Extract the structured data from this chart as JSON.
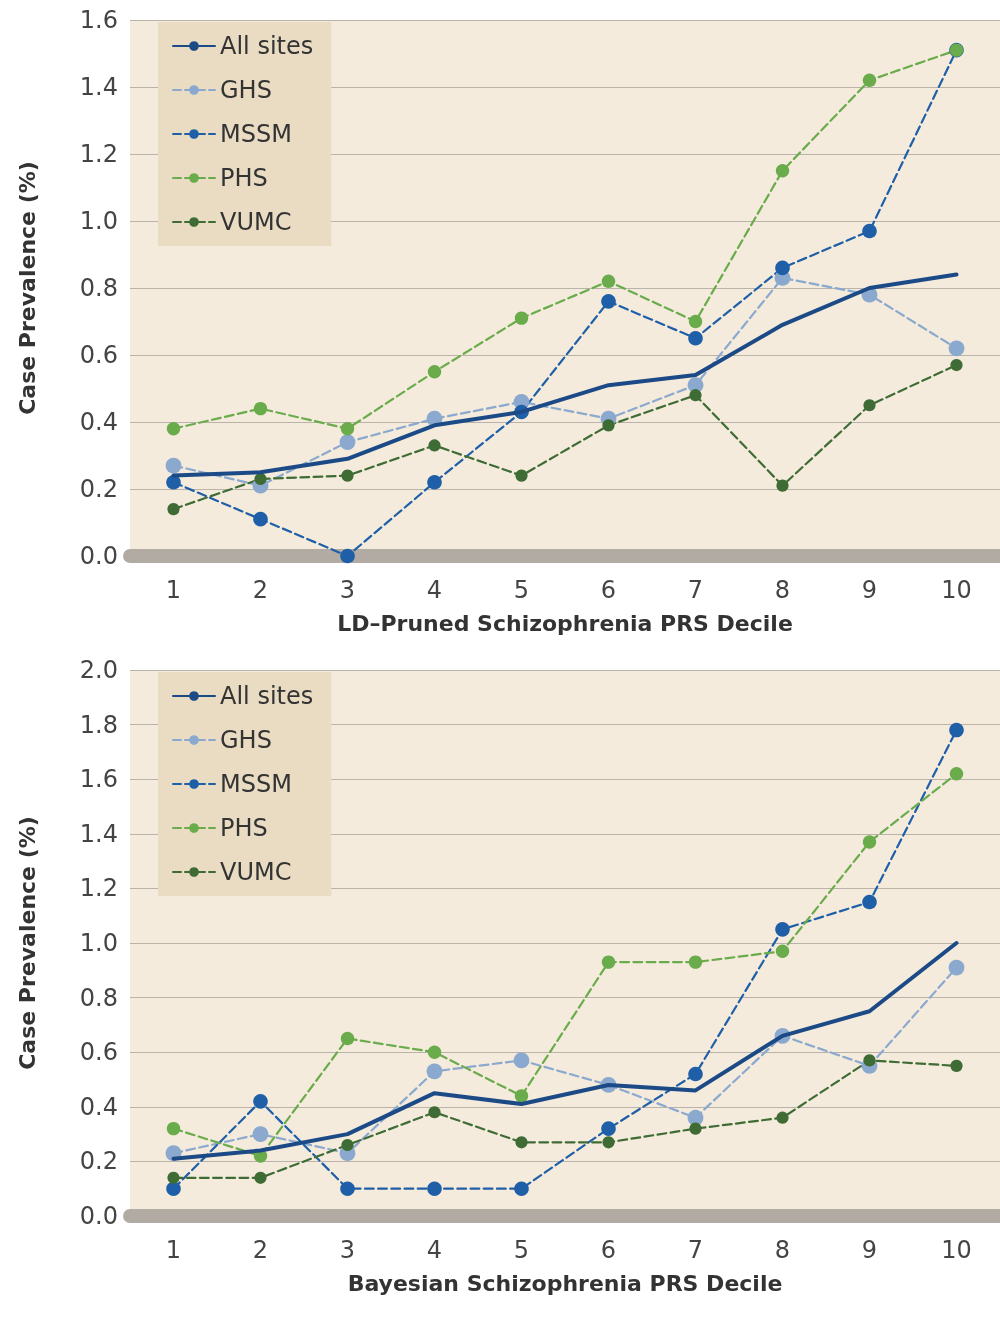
{
  "chart_data": [
    {
      "type": "line",
      "xlabel": "LD–Pruned Schizophrenia PRS Decile",
      "ylabel": "Case Prevalence (%)",
      "categories": [
        "1",
        "2",
        "3",
        "4",
        "5",
        "6",
        "7",
        "8",
        "9",
        "10"
      ],
      "ylim": [
        0,
        1.6
      ],
      "yticks": [
        {
          "value": 0,
          "label": "0.0"
        },
        0.2,
        0.4,
        0.6,
        0.8,
        {
          "value": 1,
          "label": "1.0"
        },
        1.2,
        1.4,
        1.6
      ],
      "grid": "y",
      "legend": "top left",
      "series": [
        {
          "name": "All sites",
          "color": "#1b4a86",
          "line_style": "solid",
          "marker": "none",
          "values": [
            0.24,
            0.25,
            0.29,
            0.39,
            0.43,
            0.51,
            0.54,
            0.69,
            0.8,
            0.84
          ]
        },
        {
          "name": "GHS",
          "color": "#8ba9cf",
          "line_style": "dashed",
          "marker": "circle",
          "values": [
            0.27,
            0.21,
            0.34,
            0.41,
            0.46,
            0.41,
            0.51,
            0.83,
            0.78,
            0.62
          ]
        },
        {
          "name": "MSSM",
          "color": "#1f5fa8",
          "line_style": "dashed",
          "marker": "circle",
          "values": [
            0.22,
            0.11,
            0.0,
            0.22,
            0.43,
            0.76,
            0.65,
            0.86,
            0.97,
            1.51
          ]
        },
        {
          "name": "PHS",
          "color": "#6aab4b",
          "line_style": "dashed",
          "marker": "circle",
          "values": [
            0.38,
            0.44,
            0.38,
            0.55,
            0.71,
            0.82,
            0.7,
            1.15,
            1.42,
            1.51
          ]
        },
        {
          "name": "VUMC",
          "color": "#3e6c34",
          "line_style": "dashed",
          "marker": "circle",
          "values": [
            0.14,
            0.23,
            0.24,
            0.33,
            0.24,
            0.39,
            0.48,
            0.21,
            0.45,
            0.57
          ]
        }
      ]
    },
    {
      "type": "line",
      "xlabel": "Bayesian Schizophrenia PRS Decile",
      "ylabel": "Case Prevalence (%)",
      "categories": [
        "1",
        "2",
        "3",
        "4",
        "5",
        "6",
        "7",
        "8",
        "9",
        "10"
      ],
      "ylim": [
        0,
        2
      ],
      "yticks": [
        {
          "value": 0,
          "label": "0.0"
        },
        0.2,
        0.4,
        0.6,
        0.8,
        {
          "value": 1,
          "label": "1.0"
        },
        1.2,
        1.4,
        1.6,
        1.8,
        {
          "value": 2,
          "label": "2.0"
        }
      ],
      "grid": "y",
      "legend": "top left",
      "series": [
        {
          "name": "All sites",
          "color": "#1b4a86",
          "line_style": "solid",
          "marker": "none",
          "values": [
            0.21,
            0.24,
            0.3,
            0.45,
            0.41,
            0.48,
            0.46,
            0.66,
            0.75,
            1.0
          ]
        },
        {
          "name": "GHS",
          "color": "#8ba9cf",
          "line_style": "dashed",
          "marker": "circle",
          "values": [
            0.23,
            0.3,
            0.23,
            0.53,
            0.57,
            0.48,
            0.36,
            0.66,
            0.55,
            0.91
          ]
        },
        {
          "name": "MSSM",
          "color": "#1f5fa8",
          "line_style": "dashed",
          "marker": "circle",
          "values": [
            0.1,
            0.42,
            0.1,
            0.1,
            0.1,
            0.32,
            0.52,
            1.05,
            1.15,
            1.78
          ]
        },
        {
          "name": "PHS",
          "color": "#6aab4b",
          "line_style": "dashed",
          "marker": "circle",
          "values": [
            0.32,
            0.22,
            0.65,
            0.6,
            0.44,
            0.93,
            0.93,
            0.97,
            1.37,
            1.62
          ]
        },
        {
          "name": "VUMC",
          "color": "#3e6c34",
          "line_style": "dashed",
          "marker": "circle",
          "values": [
            0.14,
            0.14,
            0.26,
            0.38,
            0.27,
            0.27,
            0.32,
            0.36,
            0.57,
            0.55
          ]
        }
      ]
    }
  ]
}
